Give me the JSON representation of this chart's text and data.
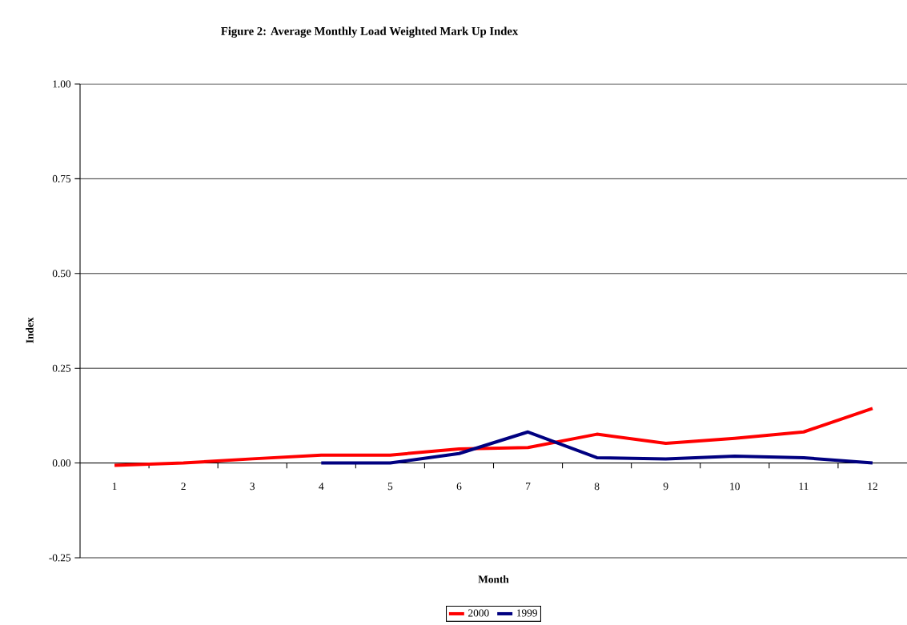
{
  "chart_data": {
    "type": "line",
    "title": "Figure 2: Average Monthly Load Weighted Mark Up Index",
    "xlabel": "Month",
    "ylabel": "Index",
    "categories": [
      "1",
      "2",
      "3",
      "4",
      "5",
      "6",
      "7",
      "8",
      "9",
      "10",
      "11",
      "12"
    ],
    "series": [
      {
        "name": "2000",
        "color": "#ff0000",
        "values": [
          -0.006,
          0.0,
          0.011,
          0.021,
          0.021,
          0.037,
          0.041,
          0.076,
          0.052,
          0.065,
          0.082,
          0.144
        ]
      },
      {
        "name": "1999",
        "color": "#000080",
        "values": [
          null,
          null,
          null,
          0.0,
          0.0,
          0.025,
          0.082,
          0.014,
          0.011,
          0.018,
          0.014,
          0.0
        ]
      }
    ],
    "ylim": [
      -0.25,
      1.0
    ],
    "yticks": [
      {
        "value": -0.25,
        "label": "-0.25"
      },
      {
        "value": 0.0,
        "label": "0.00"
      },
      {
        "value": 0.25,
        "label": "0.25"
      },
      {
        "value": 0.5,
        "label": "0.50"
      },
      {
        "value": 0.75,
        "label": "0.75"
      },
      {
        "value": 1.0,
        "label": "1.00"
      }
    ],
    "grid": "y",
    "legend": "bottom"
  }
}
